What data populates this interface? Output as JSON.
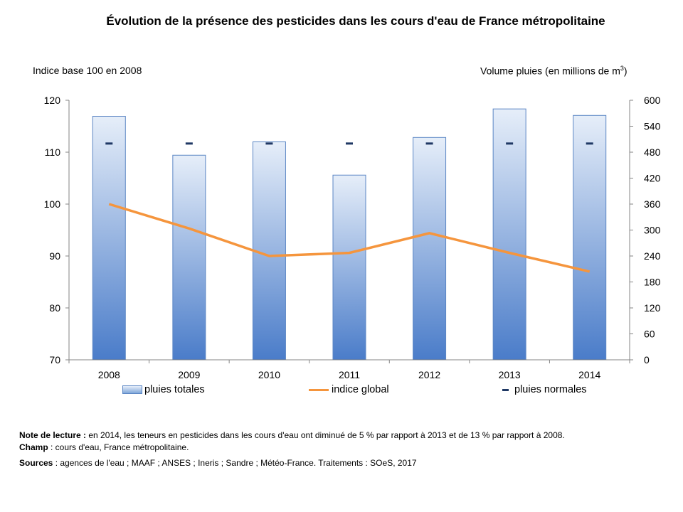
{
  "chart_data": {
    "type": "bar+line",
    "title": "Évolution de la présence des pesticides dans les cours d'eau de France métropolitaine",
    "y_left_label": "Indice base 100 en 2008",
    "y_right_label": "Volume pluies (en millions de m",
    "y_right_label_sup": "3",
    "y_right_label_end": ")",
    "categories": [
      "2008",
      "2009",
      "2010",
      "2011",
      "2012",
      "2013",
      "2014"
    ],
    "y_left_range": [
      70,
      120
    ],
    "y_left_ticks": [
      "120",
      "110",
      "100",
      "90",
      "80",
      "70"
    ],
    "y_right_range": [
      0,
      600
    ],
    "y_right_ticks": [
      "600",
      "540",
      "480",
      "420",
      "360",
      "300",
      "240",
      "180",
      "120",
      "60",
      "0"
    ],
    "series": [
      {
        "name": "pluies totales",
        "type": "bar",
        "axis": "right",
        "values": [
          563,
          473,
          504,
          427,
          514,
          580,
          565
        ]
      },
      {
        "name": "indice global",
        "type": "line",
        "axis": "left",
        "values": [
          100,
          95.3,
          90,
          90.6,
          94.4,
          90.6,
          87
        ]
      },
      {
        "name": "pluies normales",
        "type": "marker",
        "axis": "right",
        "values": [
          500,
          500,
          500,
          500,
          500,
          500,
          500
        ]
      }
    ],
    "colors": {
      "bar_top": "#e6eef9",
      "bar_bottom": "#4a7cc9",
      "bar_border": "#5b86c4",
      "line": "#f5953d",
      "marker": "#1f3864"
    },
    "grid": false,
    "legend_position": "bottom"
  },
  "notes": {
    "lecture_label": "Note de lecture :",
    "lecture_text": " en 2014, les teneurs en pesticides dans les cours d'eau ont diminué de 5 % par rapport à 2013 et de 13 % par rapport à 2008.",
    "champ_label": "Champ",
    "champ_text": " : cours d'eau, France métropolitaine.",
    "sources_label": "Sources",
    "sources_text": " : agences de l'eau ; MAAF ; ANSES ; Ineris ; Sandre ; Météo-France. Traitements : SOeS, 2017"
  }
}
